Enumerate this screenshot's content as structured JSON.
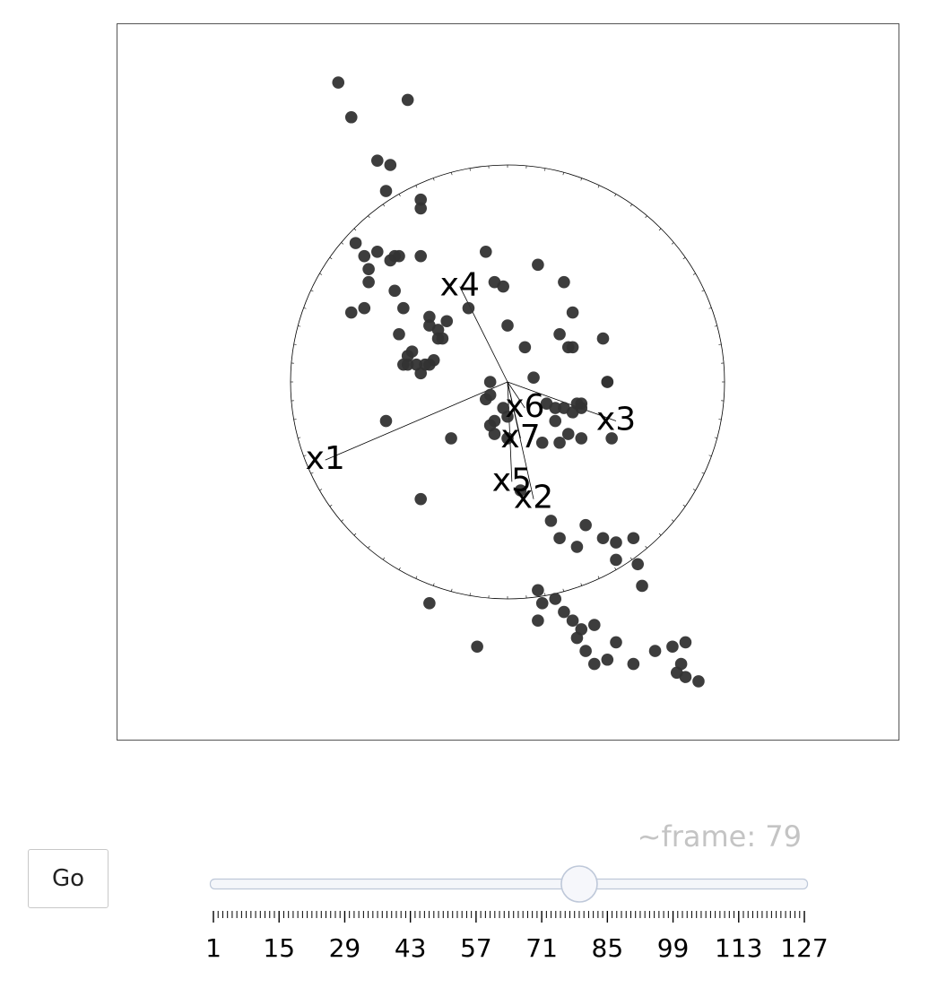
{
  "controls": {
    "go_label": "Go",
    "frame_prefix": "~frame:",
    "frame_value": "79"
  },
  "slider": {
    "min": 1,
    "max": 127,
    "value": 79,
    "tick_labels": [
      "1",
      "15",
      "29",
      "43",
      "57",
      "71",
      "85",
      "99",
      "113",
      "127"
    ]
  },
  "colors": {
    "point": "#333333",
    "axis": "#000000",
    "slider_track": "#f4f6fa",
    "slider_border": "#bec8d9"
  },
  "chart_data": {
    "type": "scatter",
    "grid": false,
    "xlim": [
      -1.2,
      1.2
    ],
    "ylim": [
      -1.15,
      1.15
    ],
    "circle_radius": 0.5,
    "axes": [
      {
        "name": "x1",
        "x": -0.42,
        "y": -0.18
      },
      {
        "name": "x2",
        "x": 0.06,
        "y": -0.27
      },
      {
        "name": "x3",
        "x": 0.25,
        "y": -0.09
      },
      {
        "name": "x4",
        "x": -0.11,
        "y": 0.22
      },
      {
        "name": "x5",
        "x": 0.01,
        "y": -0.23
      },
      {
        "name": "x6",
        "x": 0.04,
        "y": -0.06
      },
      {
        "name": "x7",
        "x": 0.03,
        "y": -0.13
      }
    ],
    "points": [
      [
        -0.39,
        0.69
      ],
      [
        -0.36,
        0.61
      ],
      [
        -0.23,
        0.65
      ],
      [
        -0.3,
        0.51
      ],
      [
        -0.27,
        0.5
      ],
      [
        -0.28,
        0.44
      ],
      [
        -0.2,
        0.42
      ],
      [
        -0.2,
        0.4
      ],
      [
        -0.35,
        0.32
      ],
      [
        -0.33,
        0.29
      ],
      [
        -0.32,
        0.26
      ],
      [
        -0.3,
        0.3
      ],
      [
        -0.26,
        0.29
      ],
      [
        -0.27,
        0.28
      ],
      [
        -0.25,
        0.29
      ],
      [
        -0.2,
        0.29
      ],
      [
        -0.32,
        0.23
      ],
      [
        -0.26,
        0.21
      ],
      [
        -0.36,
        0.16
      ],
      [
        -0.33,
        0.17
      ],
      [
        -0.24,
        0.17
      ],
      [
        -0.18,
        0.15
      ],
      [
        -0.18,
        0.13
      ],
      [
        -0.16,
        0.12
      ],
      [
        -0.14,
        0.14
      ],
      [
        -0.16,
        0.1
      ],
      [
        -0.15,
        0.1
      ],
      [
        -0.17,
        0.05
      ],
      [
        -0.25,
        0.11
      ],
      [
        -0.23,
        0.06
      ],
      [
        -0.22,
        0.07
      ],
      [
        -0.23,
        0.04
      ],
      [
        -0.24,
        0.04
      ],
      [
        -0.21,
        0.04
      ],
      [
        -0.19,
        0.04
      ],
      [
        -0.2,
        0.02
      ],
      [
        -0.18,
        0.04
      ],
      [
        -0.05,
        0.3
      ],
      [
        -0.03,
        0.23
      ],
      [
        -0.01,
        0.22
      ],
      [
        0.07,
        0.27
      ],
      [
        0.13,
        0.23
      ],
      [
        0.15,
        0.16
      ],
      [
        -0.09,
        0.17
      ],
      [
        0.0,
        0.13
      ],
      [
        0.04,
        0.08
      ],
      [
        0.12,
        0.11
      ],
      [
        0.14,
        0.08
      ],
      [
        0.15,
        0.08
      ],
      [
        0.22,
        0.1
      ],
      [
        0.23,
        0.0
      ],
      [
        0.23,
        0.0
      ],
      [
        0.06,
        0.01
      ],
      [
        -0.04,
        0.0
      ],
      [
        -0.04,
        -0.03
      ],
      [
        -0.05,
        -0.04
      ],
      [
        -0.01,
        -0.06
      ],
      [
        0.09,
        -0.05
      ],
      [
        0.11,
        -0.06
      ],
      [
        0.13,
        -0.06
      ],
      [
        0.15,
        -0.07
      ],
      [
        0.17,
        -0.06
      ],
      [
        0.17,
        -0.05
      ],
      [
        0.16,
        -0.05
      ],
      [
        -0.04,
        -0.1
      ],
      [
        -0.03,
        -0.09
      ],
      [
        -0.03,
        -0.12
      ],
      [
        0.0,
        -0.08
      ],
      [
        0.0,
        -0.13
      ],
      [
        0.08,
        -0.14
      ],
      [
        0.11,
        -0.09
      ],
      [
        0.12,
        -0.14
      ],
      [
        0.14,
        -0.12
      ],
      [
        0.17,
        -0.13
      ],
      [
        0.24,
        -0.13
      ],
      [
        -0.13,
        -0.13
      ],
      [
        -0.28,
        -0.09
      ],
      [
        -0.2,
        -0.27
      ],
      [
        0.03,
        -0.25
      ],
      [
        0.1,
        -0.32
      ],
      [
        0.12,
        -0.36
      ],
      [
        0.16,
        -0.38
      ],
      [
        0.18,
        -0.33
      ],
      [
        0.22,
        -0.36
      ],
      [
        0.25,
        -0.37
      ],
      [
        0.29,
        -0.36
      ],
      [
        0.25,
        -0.41
      ],
      [
        0.3,
        -0.42
      ],
      [
        0.31,
        -0.47
      ],
      [
        0.07,
        -0.48
      ],
      [
        0.08,
        -0.51
      ],
      [
        0.11,
        -0.5
      ],
      [
        0.13,
        -0.53
      ],
      [
        0.15,
        -0.55
      ],
      [
        0.17,
        -0.57
      ],
      [
        0.2,
        -0.56
      ],
      [
        0.16,
        -0.59
      ],
      [
        0.18,
        -0.62
      ],
      [
        0.2,
        -0.65
      ],
      [
        0.23,
        -0.64
      ],
      [
        0.25,
        -0.6
      ],
      [
        0.29,
        -0.65
      ],
      [
        0.34,
        -0.62
      ],
      [
        0.38,
        -0.61
      ],
      [
        0.39,
        -0.67
      ],
      [
        0.4,
        -0.65
      ],
      [
        0.41,
        -0.68
      ],
      [
        0.44,
        -0.69
      ],
      [
        0.41,
        -0.6
      ],
      [
        -0.07,
        -0.61
      ],
      [
        0.07,
        -0.55
      ],
      [
        -0.18,
        -0.51
      ]
    ]
  }
}
